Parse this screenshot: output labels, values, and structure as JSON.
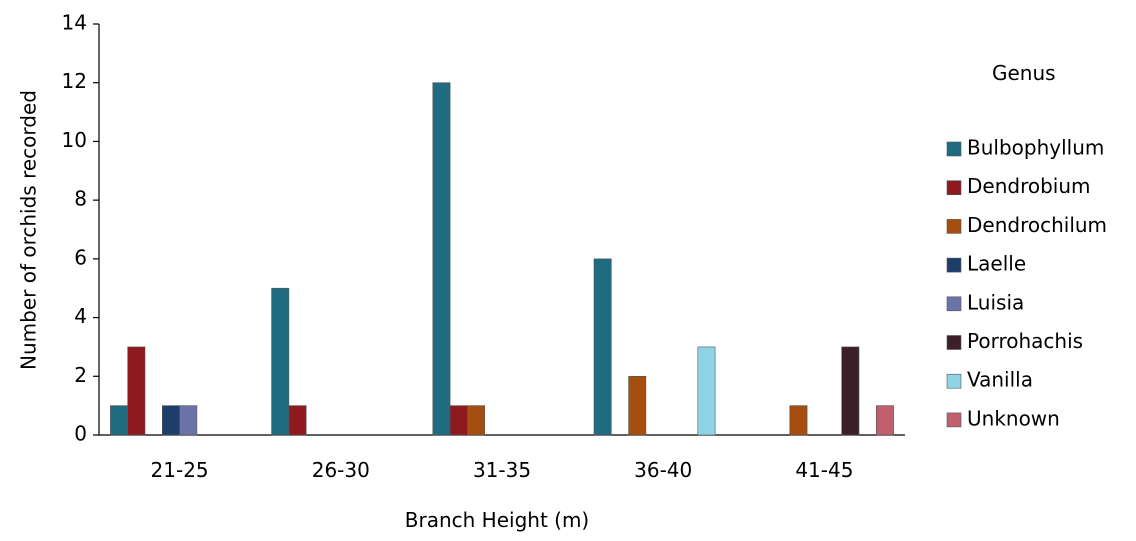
{
  "chart_data": {
    "type": "bar",
    "title": "",
    "xlabel": "Branch Height (m)",
    "ylabel": "Number of orchids recorded",
    "categories": [
      "21-25",
      "26-30",
      "31-35",
      "36-40",
      "41-45"
    ],
    "ylim": [
      0,
      14
    ],
    "yticks": [
      0,
      2,
      4,
      6,
      8,
      10,
      12,
      14
    ],
    "grid": false,
    "legend": {
      "title": "Genus",
      "placement": "right"
    },
    "series": [
      {
        "name": "Bulbophyllum",
        "color": "#1f6b80",
        "values": [
          1,
          5,
          12,
          6,
          0
        ]
      },
      {
        "name": "Dendrobium",
        "color": "#8e1a1f",
        "values": [
          3,
          1,
          1,
          0,
          0
        ]
      },
      {
        "name": "Dendrochilum",
        "color": "#a64d10",
        "values": [
          0,
          0,
          1,
          2,
          1
        ]
      },
      {
        "name": "Laelle",
        "color": "#1d3e6b",
        "values": [
          1,
          0,
          0,
          0,
          0
        ]
      },
      {
        "name": "Luisia",
        "color": "#6c73a8",
        "values": [
          1,
          0,
          0,
          0,
          0
        ]
      },
      {
        "name": "Porrohachis",
        "color": "#3b1f2b",
        "values": [
          0,
          0,
          0,
          0,
          3
        ]
      },
      {
        "name": "Vanilla",
        "color": "#8fd3e6",
        "values": [
          0,
          0,
          0,
          3,
          0
        ]
      },
      {
        "name": "Unknown",
        "color": "#c0606e",
        "values": [
          0,
          0,
          0,
          0,
          1
        ]
      }
    ]
  }
}
